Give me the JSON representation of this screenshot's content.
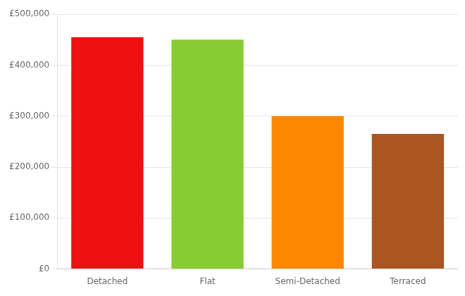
{
  "chart_data": {
    "type": "bar",
    "categories": [
      "Detached",
      "Flat",
      "Semi-Detached",
      "Terraced"
    ],
    "values": [
      455000,
      450000,
      300000,
      265000
    ],
    "colors": [
      "#ee1111",
      "#88cc33",
      "#ff8800",
      "#aa5522"
    ],
    "ylim": [
      0,
      500000
    ],
    "yticks": [
      {
        "value": 0,
        "label": "£0"
      },
      {
        "value": 100000,
        "label": "£100,000"
      },
      {
        "value": 200000,
        "label": "£200,000"
      },
      {
        "value": 300000,
        "label": "£300,000"
      },
      {
        "value": 400000,
        "label": "£400,000"
      },
      {
        "value": 500000,
        "label": "£500,000"
      }
    ],
    "grid": true
  }
}
